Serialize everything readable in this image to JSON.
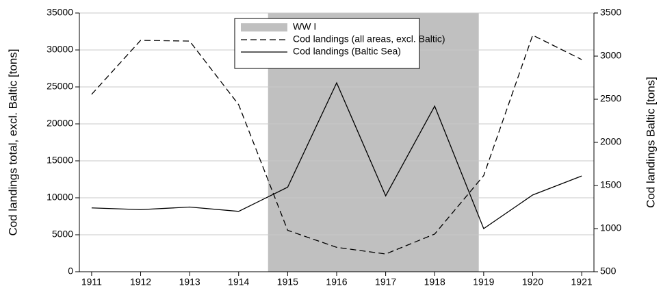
{
  "chart_data": {
    "type": "line",
    "y_label": "Cod landings total, excl. Baltic [tons]",
    "y2_label": "Cod landings Baltic [tons]",
    "x": [
      1911,
      1912,
      1913,
      1914,
      1915,
      1916,
      1917,
      1918,
      1919,
      1920,
      1921
    ],
    "xlim": [
      1910.75,
      1921.25
    ],
    "xticks": [
      1911,
      1912,
      1913,
      1914,
      1915,
      1916,
      1917,
      1918,
      1919,
      1920,
      1921
    ],
    "ylim": [
      0,
      35000
    ],
    "yticks": [
      0,
      5000,
      10000,
      15000,
      20000,
      25000,
      30000,
      35000
    ],
    "y2lim": [
      500,
      3500
    ],
    "y2ticks": [
      500,
      1000,
      1500,
      2000,
      2500,
      3000,
      3500
    ],
    "grid": true,
    "legend": "top",
    "shade": {
      "name": "WW I",
      "x": [
        1914.6,
        1918.9
      ],
      "color": "#c0c0c0"
    },
    "series": [
      {
        "name": "Cod landings (all areas, excl. Baltic)",
        "color": "#000000",
        "style": "dashed",
        "values": [
          24000,
          31300,
          31200,
          22600,
          5600,
          3300,
          2400,
          5100,
          13000,
          32000,
          28700
        ]
      },
      {
        "name": "Cod landings (Baltic Sea)",
        "color": "#000000",
        "style": "solid",
        "axis": "y2",
        "values": [
          1240,
          1220,
          1250,
          1200,
          1480,
          2690,
          1380,
          2420,
          1000,
          1390,
          1610
        ]
      }
    ]
  }
}
